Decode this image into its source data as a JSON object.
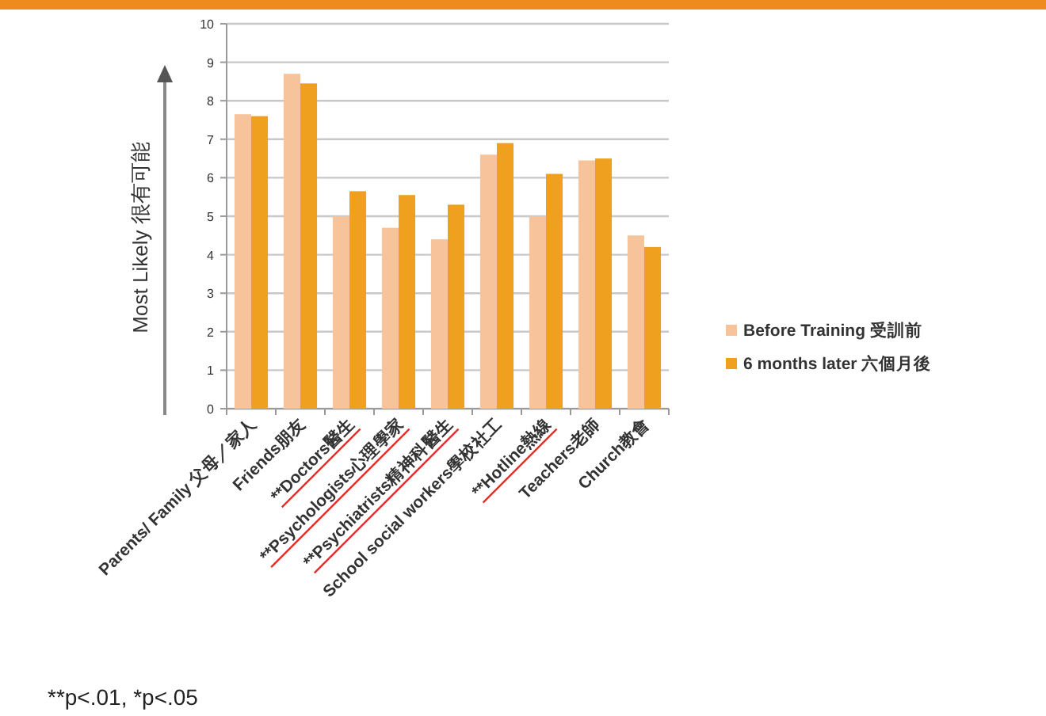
{
  "chart_data": {
    "type": "bar",
    "ylabel": "Most Likely 很有可能",
    "categories": [
      "Parents/ Family 父母／家人",
      "Friends朋友",
      "**Doctors醫生",
      "**Psychologists心理學家",
      "**Psychiatrists精神科醫生",
      "School social workers學校社工",
      "**Hotline熱線",
      "Teachers老師",
      "Church教會"
    ],
    "series": [
      {
        "name": "Before Training 受訓前",
        "color": "#f7c39a",
        "values": [
          7.65,
          8.7,
          5.0,
          4.7,
          4.4,
          6.6,
          5.0,
          6.45,
          4.5
        ]
      },
      {
        "name": "6 months later 六個月後",
        "color": "#eea01e",
        "values": [
          7.6,
          8.45,
          5.65,
          5.55,
          5.3,
          6.9,
          6.1,
          6.5,
          4.2
        ]
      }
    ],
    "ylim": [
      0,
      10
    ],
    "yticks": [
      0,
      1,
      2,
      3,
      4,
      5,
      6,
      7,
      8,
      9,
      10
    ],
    "grid": "y",
    "legend": "right",
    "annotations": [
      "**p<.01, *p<.05"
    ]
  }
}
